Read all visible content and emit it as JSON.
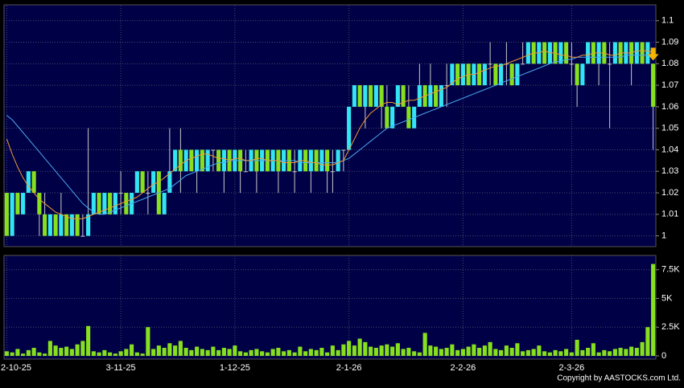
{
  "chart_data": {
    "type": "candlestick",
    "categories": [
      "2-10-25",
      null,
      null,
      null,
      null,
      null,
      null,
      null,
      null,
      null,
      null,
      null,
      null,
      null,
      null,
      null,
      null,
      null,
      null,
      null,
      null,
      "3-11-25",
      null,
      null,
      null,
      null,
      null,
      null,
      null,
      null,
      null,
      null,
      null,
      null,
      null,
      null,
      null,
      null,
      null,
      null,
      null,
      null,
      "1-12-25",
      null,
      null,
      null,
      null,
      null,
      null,
      null,
      null,
      null,
      null,
      null,
      null,
      null,
      null,
      null,
      null,
      null,
      null,
      null,
      null,
      "2-1-26",
      null,
      null,
      null,
      null,
      null,
      null,
      null,
      null,
      null,
      null,
      null,
      null,
      null,
      null,
      null,
      null,
      null,
      null,
      null,
      null,
      "2-2-26",
      null,
      null,
      null,
      null,
      null,
      null,
      null,
      null,
      null,
      null,
      null,
      null,
      null,
      null,
      null,
      null,
      null,
      null,
      null,
      "2-3-26",
      null,
      null,
      null,
      null,
      null,
      null,
      null,
      null,
      null,
      null,
      null,
      null,
      null,
      null,
      null
    ],
    "open": [
      1.02,
      1.0,
      1.02,
      1.01,
      1.02,
      1.03,
      1.02,
      1.01,
      1.0,
      1.01,
      1.0,
      1.01,
      1.0,
      1.01,
      1.0,
      1.0,
      1.01,
      1.02,
      1.01,
      1.02,
      1.01,
      1.02,
      1.02,
      1.01,
      1.02,
      1.03,
      1.02,
      1.02,
      1.03,
      1.01,
      1.02,
      1.03,
      1.04,
      1.03,
      1.04,
      1.03,
      1.04,
      1.03,
      1.04,
      1.04,
      1.03,
      1.04,
      1.03,
      1.04,
      1.03,
      1.03,
      1.04,
      1.03,
      1.04,
      1.03,
      1.04,
      1.03,
      1.04,
      1.03,
      1.03,
      1.04,
      1.03,
      1.04,
      1.03,
      1.04,
      1.03,
      1.03,
      1.04,
      1.04,
      1.06,
      1.07,
      1.06,
      1.07,
      1.06,
      1.07,
      1.06,
      1.05,
      1.06,
      1.07,
      1.06,
      1.05,
      1.06,
      1.07,
      1.06,
      1.07,
      1.06,
      1.07,
      1.07,
      1.08,
      1.07,
      1.08,
      1.07,
      1.08,
      1.07,
      1.08,
      1.08,
      1.07,
      1.08,
      1.08,
      1.07,
      1.08,
      1.08,
      1.09,
      1.08,
      1.09,
      1.08,
      1.09,
      1.08,
      1.09,
      1.08,
      1.08,
      1.07,
      1.08,
      1.09,
      1.08,
      1.09,
      1.08,
      1.08,
      1.09,
      1.08,
      1.09,
      1.08,
      1.09,
      1.08,
      1.08
    ],
    "high": [
      1.02,
      1.02,
      1.02,
      1.02,
      1.03,
      1.03,
      1.02,
      1.02,
      1.01,
      1.01,
      1.02,
      1.01,
      1.01,
      1.01,
      1.01,
      1.05,
      1.02,
      1.02,
      1.02,
      1.02,
      1.02,
      1.03,
      1.02,
      1.02,
      1.03,
      1.03,
      1.03,
      1.03,
      1.03,
      1.02,
      1.05,
      1.04,
      1.05,
      1.04,
      1.04,
      1.04,
      1.04,
      1.04,
      1.04,
      1.04,
      1.04,
      1.04,
      1.04,
      1.04,
      1.04,
      1.04,
      1.04,
      1.04,
      1.04,
      1.04,
      1.04,
      1.04,
      1.04,
      1.04,
      1.04,
      1.04,
      1.04,
      1.04,
      1.04,
      1.04,
      1.04,
      1.04,
      1.04,
      1.06,
      1.07,
      1.07,
      1.07,
      1.07,
      1.07,
      1.07,
      1.07,
      1.06,
      1.07,
      1.07,
      1.07,
      1.06,
      1.08,
      1.07,
      1.08,
      1.07,
      1.07,
      1.08,
      1.08,
      1.08,
      1.08,
      1.08,
      1.08,
      1.08,
      1.08,
      1.09,
      1.08,
      1.08,
      1.09,
      1.08,
      1.08,
      1.09,
      1.09,
      1.09,
      1.09,
      1.09,
      1.09,
      1.09,
      1.09,
      1.09,
      1.09,
      1.08,
      1.08,
      1.09,
      1.09,
      1.09,
      1.09,
      1.09,
      1.09,
      1.09,
      1.09,
      1.09,
      1.09,
      1.09,
      1.09,
      1.08
    ],
    "low": [
      1.0,
      1.0,
      1.01,
      1.01,
      1.02,
      1.02,
      1.0,
      1.0,
      1.0,
      1.0,
      1.0,
      1.0,
      1.0,
      1.0,
      1.0,
      1.0,
      1.01,
      1.01,
      1.01,
      1.01,
      1.01,
      1.01,
      1.01,
      1.01,
      1.02,
      1.02,
      1.01,
      1.02,
      1.01,
      1.01,
      1.02,
      1.03,
      1.02,
      1.03,
      1.03,
      1.02,
      1.03,
      1.03,
      1.03,
      1.03,
      1.02,
      1.03,
      1.03,
      1.02,
      1.03,
      1.03,
      1.02,
      1.03,
      1.03,
      1.03,
      1.02,
      1.03,
      1.03,
      1.02,
      1.03,
      1.03,
      1.02,
      1.03,
      1.03,
      1.02,
      1.02,
      1.03,
      1.03,
      1.04,
      1.06,
      1.06,
      1.05,
      1.06,
      1.06,
      1.05,
      1.05,
      1.05,
      1.06,
      1.06,
      1.05,
      1.05,
      1.06,
      1.06,
      1.06,
      1.06,
      1.06,
      1.06,
      1.07,
      1.07,
      1.07,
      1.07,
      1.07,
      1.07,
      1.07,
      1.07,
      1.07,
      1.07,
      1.07,
      1.07,
      1.07,
      1.08,
      1.08,
      1.08,
      1.08,
      1.08,
      1.08,
      1.08,
      1.08,
      1.08,
      1.07,
      1.06,
      1.07,
      1.08,
      1.08,
      1.07,
      1.08,
      1.05,
      1.08,
      1.08,
      1.08,
      1.07,
      1.08,
      1.08,
      1.08,
      1.04
    ],
    "close": [
      1.0,
      1.02,
      1.01,
      1.02,
      1.03,
      1.02,
      1.01,
      1.0,
      1.01,
      1.0,
      1.01,
      1.0,
      1.01,
      1.0,
      1.0,
      1.01,
      1.02,
      1.01,
      1.02,
      1.01,
      1.02,
      1.02,
      1.01,
      1.02,
      1.03,
      1.02,
      1.02,
      1.03,
      1.01,
      1.02,
      1.03,
      1.04,
      1.03,
      1.04,
      1.03,
      1.04,
      1.03,
      1.04,
      1.04,
      1.03,
      1.04,
      1.03,
      1.04,
      1.03,
      1.03,
      1.04,
      1.03,
      1.04,
      1.03,
      1.04,
      1.03,
      1.04,
      1.03,
      1.03,
      1.04,
      1.03,
      1.04,
      1.03,
      1.04,
      1.03,
      1.03,
      1.04,
      1.04,
      1.06,
      1.07,
      1.06,
      1.07,
      1.06,
      1.07,
      1.06,
      1.05,
      1.06,
      1.07,
      1.06,
      1.05,
      1.06,
      1.07,
      1.06,
      1.07,
      1.06,
      1.07,
      1.07,
      1.08,
      1.07,
      1.08,
      1.07,
      1.08,
      1.07,
      1.08,
      1.08,
      1.07,
      1.08,
      1.08,
      1.07,
      1.08,
      1.08,
      1.09,
      1.08,
      1.09,
      1.08,
      1.09,
      1.08,
      1.09,
      1.08,
      1.08,
      1.07,
      1.08,
      1.09,
      1.08,
      1.09,
      1.08,
      1.08,
      1.09,
      1.08,
      1.09,
      1.08,
      1.09,
      1.08,
      1.09,
      1.06
    ],
    "up_color": "#33e4f2",
    "down_color": "#86e01e",
    "wick_color": "#c8c8c8",
    "ylim": [
      0.995,
      1.107
    ],
    "yticks": [
      1,
      1.01,
      1.02,
      1.03,
      1.04,
      1.05,
      1.06,
      1.07,
      1.08,
      1.09,
      1.1
    ],
    "grid": true,
    "ma": [
      {
        "color": "#4aa8f0",
        "values": [
          1.056,
          1.054,
          1.051,
          1.048,
          1.045,
          1.042,
          1.039,
          1.036,
          1.033,
          1.03,
          1.027,
          1.024,
          1.021,
          1.018,
          1.015,
          1.013,
          1.011,
          1.01,
          1.01,
          1.011,
          1.012,
          1.013,
          1.014,
          1.015,
          1.016,
          1.017,
          1.018,
          1.019,
          1.02,
          1.021,
          1.022,
          1.024,
          1.026,
          1.028,
          1.029,
          1.03,
          1.031,
          1.032,
          1.033,
          1.034,
          1.034,
          1.035,
          1.035,
          1.035,
          1.035,
          1.035,
          1.035,
          1.035,
          1.035,
          1.035,
          1.035,
          1.035,
          1.035,
          1.035,
          1.034,
          1.034,
          1.034,
          1.034,
          1.034,
          1.034,
          1.034,
          1.034,
          1.035,
          1.036,
          1.038,
          1.04,
          1.042,
          1.044,
          1.046,
          1.048,
          1.05,
          1.051,
          1.052,
          1.053,
          1.054,
          1.055,
          1.056,
          1.057,
          1.058,
          1.059,
          1.06,
          1.061,
          1.062,
          1.063,
          1.064,
          1.065,
          1.066,
          1.067,
          1.068,
          1.069,
          1.07,
          1.071,
          1.072,
          1.073,
          1.074,
          1.075,
          1.076,
          1.077,
          1.078,
          1.079,
          1.08,
          1.081,
          1.081,
          1.082,
          1.082,
          1.083,
          1.083,
          1.083,
          1.083,
          1.083,
          1.083,
          1.083,
          1.083,
          1.083,
          1.084,
          1.084,
          1.084,
          1.084,
          1.084,
          1.084
        ]
      },
      {
        "color": "#f09a30",
        "values": [
          1.045,
          1.038,
          1.032,
          1.027,
          1.023,
          1.02,
          1.017,
          1.015,
          1.013,
          1.011,
          1.01,
          1.009,
          1.008,
          1.008,
          1.008,
          1.009,
          1.01,
          1.011,
          1.012,
          1.013,
          1.014,
          1.015,
          1.016,
          1.017,
          1.018,
          1.02,
          1.022,
          1.024,
          1.025,
          1.027,
          1.029,
          1.031,
          1.033,
          1.035,
          1.036,
          1.037,
          1.038,
          1.038,
          1.037,
          1.036,
          1.036,
          1.035,
          1.036,
          1.036,
          1.035,
          1.035,
          1.036,
          1.036,
          1.035,
          1.035,
          1.035,
          1.034,
          1.034,
          1.034,
          1.035,
          1.035,
          1.034,
          1.034,
          1.033,
          1.033,
          1.033,
          1.034,
          1.035,
          1.04,
          1.045,
          1.05,
          1.054,
          1.057,
          1.059,
          1.061,
          1.062,
          1.062,
          1.061,
          1.062,
          1.063,
          1.063,
          1.064,
          1.065,
          1.066,
          1.067,
          1.068,
          1.069,
          1.071,
          1.073,
          1.074,
          1.075,
          1.075,
          1.076,
          1.077,
          1.078,
          1.079,
          1.079,
          1.08,
          1.081,
          1.082,
          1.083,
          1.084,
          1.085,
          1.085,
          1.086,
          1.085,
          1.085,
          1.084,
          1.084,
          1.083,
          1.083,
          1.084,
          1.084,
          1.085,
          1.085,
          1.085,
          1.084,
          1.084,
          1.085,
          1.085,
          1.085,
          1.086,
          1.086,
          1.086,
          1.085
        ]
      }
    ],
    "volume": {
      "color": "#86e01e",
      "ylim": [
        0,
        8600
      ],
      "yticks": [
        0,
        {
          "value": 2500,
          "label": "2.5K"
        },
        {
          "value": 5000,
          "label": "5K"
        },
        {
          "value": 7500,
          "label": "7.5K"
        }
      ],
      "values": [
        400,
        300,
        600,
        200,
        500,
        700,
        300,
        200,
        1300,
        900,
        700,
        800,
        600,
        1000,
        1300,
        2600,
        400,
        300,
        500,
        300,
        200,
        400,
        600,
        1000,
        300,
        200,
        2500,
        600,
        900,
        700,
        1100,
        900,
        1300,
        700,
        500,
        800,
        600,
        500,
        800,
        500,
        700,
        600,
        900,
        400,
        300,
        500,
        600,
        400,
        300,
        600,
        700,
        400,
        500,
        300,
        800,
        400,
        600,
        500,
        700,
        300,
        900,
        500,
        1000,
        1300,
        900,
        1500,
        1200,
        800,
        700,
        900,
        1000,
        800,
        1100,
        600,
        700,
        400,
        300,
        2000,
        900,
        800,
        600,
        700,
        1000,
        500,
        600,
        800,
        1000,
        700,
        900,
        1200,
        600,
        500,
        900,
        700,
        1100,
        400,
        500,
        600,
        900,
        400,
        300,
        500,
        400,
        600,
        300,
        1400,
        500,
        700,
        1100,
        300,
        500,
        400,
        600,
        700,
        600,
        800,
        700,
        1200,
        2500,
        8000
      ]
    },
    "credit": "Copyright by AASTOCKS.com Ltd."
  }
}
